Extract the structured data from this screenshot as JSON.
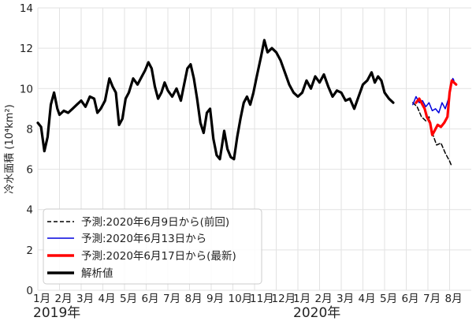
{
  "chart_data": {
    "type": "line",
    "ylabel": "冷水面積 (10⁴km²)",
    "ylim": [
      0,
      14
    ],
    "y_ticks": [
      "0",
      "2",
      "4",
      "6",
      "8",
      "10",
      "12",
      "14"
    ],
    "x_ticks": [
      "1月",
      "2月",
      "3月",
      "4月",
      "5月",
      "6月",
      "7月",
      "8月",
      "9月",
      "10月",
      "11月",
      "12月",
      "1月",
      "2月",
      "3月",
      "4月",
      "5月",
      "6月",
      "7月",
      "8月"
    ],
    "year_labels": [
      {
        "label": "2019年",
        "month": 1
      },
      {
        "label": "2020年",
        "month": 13
      }
    ],
    "grid": true,
    "legend_position": "lower-left",
    "series": [
      {
        "name": "予測:2020年6月9日から(前回)",
        "color": "#000000",
        "style": "dashed",
        "points": [
          [
            18.3,
            9.3
          ],
          [
            18.5,
            9.1
          ],
          [
            18.7,
            8.6
          ],
          [
            18.9,
            8.4
          ],
          [
            19.05,
            8.6
          ],
          [
            19.2,
            7.8
          ],
          [
            19.4,
            7.2
          ],
          [
            19.6,
            7.3
          ],
          [
            19.8,
            6.8
          ],
          [
            20.0,
            6.4
          ],
          [
            20.08,
            6.2
          ]
        ]
      },
      {
        "name": "予測:2020年6月13日から",
        "color": "#0000dd",
        "style": "solid",
        "points": [
          [
            18.3,
            9.2
          ],
          [
            18.45,
            9.6
          ],
          [
            18.6,
            9.3
          ],
          [
            18.75,
            9.4
          ],
          [
            18.9,
            9.1
          ],
          [
            19.05,
            9.3
          ],
          [
            19.2,
            8.9
          ],
          [
            19.35,
            9.0
          ],
          [
            19.5,
            8.8
          ],
          [
            19.65,
            9.3
          ],
          [
            19.8,
            9.0
          ],
          [
            19.95,
            9.5
          ],
          [
            20.05,
            10.2
          ],
          [
            20.15,
            10.5
          ],
          [
            20.2,
            10.4
          ]
        ]
      },
      {
        "name": "予測:2020年6月17日から(最新)",
        "color": "#ff0000",
        "style": "solid",
        "points": [
          [
            18.45,
            9.3
          ],
          [
            18.6,
            9.5
          ],
          [
            18.75,
            9.2
          ],
          [
            18.85,
            9.0
          ],
          [
            18.95,
            8.6
          ],
          [
            19.1,
            8.3
          ],
          [
            19.2,
            7.7
          ],
          [
            19.3,
            7.9
          ],
          [
            19.45,
            8.2
          ],
          [
            19.6,
            8.1
          ],
          [
            19.75,
            8.3
          ],
          [
            19.9,
            8.6
          ],
          [
            20.0,
            9.8
          ],
          [
            20.1,
            10.4
          ],
          [
            20.2,
            10.3
          ],
          [
            20.3,
            10.2
          ]
        ]
      },
      {
        "name": "解析値",
        "color": "#000000",
        "style": "solid-thick",
        "points": [
          [
            1.0,
            8.3
          ],
          [
            1.15,
            8.1
          ],
          [
            1.3,
            6.9
          ],
          [
            1.45,
            7.6
          ],
          [
            1.6,
            9.2
          ],
          [
            1.75,
            9.8
          ],
          [
            1.9,
            9.0
          ],
          [
            2.0,
            8.7
          ],
          [
            2.2,
            8.9
          ],
          [
            2.4,
            8.8
          ],
          [
            2.6,
            9.0
          ],
          [
            2.8,
            9.2
          ],
          [
            3.0,
            9.4
          ],
          [
            3.2,
            9.1
          ],
          [
            3.4,
            9.6
          ],
          [
            3.6,
            9.5
          ],
          [
            3.75,
            8.8
          ],
          [
            3.9,
            9.0
          ],
          [
            4.1,
            9.4
          ],
          [
            4.3,
            10.5
          ],
          [
            4.45,
            10.1
          ],
          [
            4.6,
            9.8
          ],
          [
            4.75,
            8.2
          ],
          [
            4.9,
            8.5
          ],
          [
            5.05,
            9.5
          ],
          [
            5.2,
            9.8
          ],
          [
            5.4,
            10.5
          ],
          [
            5.6,
            10.2
          ],
          [
            5.8,
            10.6
          ],
          [
            5.95,
            10.9
          ],
          [
            6.1,
            11.3
          ],
          [
            6.25,
            11.0
          ],
          [
            6.4,
            10.1
          ],
          [
            6.55,
            9.5
          ],
          [
            6.7,
            9.8
          ],
          [
            6.85,
            10.3
          ],
          [
            7.0,
            9.9
          ],
          [
            7.2,
            9.6
          ],
          [
            7.4,
            10.0
          ],
          [
            7.6,
            9.4
          ],
          [
            7.75,
            10.2
          ],
          [
            7.9,
            11.0
          ],
          [
            8.05,
            11.2
          ],
          [
            8.2,
            10.5
          ],
          [
            8.35,
            9.5
          ],
          [
            8.5,
            8.3
          ],
          [
            8.65,
            7.8
          ],
          [
            8.8,
            8.8
          ],
          [
            8.95,
            9.0
          ],
          [
            9.1,
            7.5
          ],
          [
            9.25,
            6.7
          ],
          [
            9.4,
            6.5
          ],
          [
            9.5,
            7.2
          ],
          [
            9.6,
            7.9
          ],
          [
            9.75,
            7.0
          ],
          [
            9.9,
            6.6
          ],
          [
            10.05,
            6.5
          ],
          [
            10.2,
            7.6
          ],
          [
            10.35,
            8.5
          ],
          [
            10.5,
            9.3
          ],
          [
            10.65,
            9.6
          ],
          [
            10.8,
            9.2
          ],
          [
            10.95,
            9.8
          ],
          [
            11.1,
            10.6
          ],
          [
            11.3,
            11.6
          ],
          [
            11.45,
            12.4
          ],
          [
            11.6,
            11.8
          ],
          [
            11.8,
            12.0
          ],
          [
            12.0,
            11.8
          ],
          [
            12.2,
            11.4
          ],
          [
            12.4,
            10.8
          ],
          [
            12.6,
            10.2
          ],
          [
            12.8,
            9.8
          ],
          [
            13.0,
            9.6
          ],
          [
            13.2,
            9.8
          ],
          [
            13.4,
            10.4
          ],
          [
            13.6,
            10.0
          ],
          [
            13.8,
            10.6
          ],
          [
            14.0,
            10.3
          ],
          [
            14.2,
            10.7
          ],
          [
            14.4,
            10.1
          ],
          [
            14.6,
            9.6
          ],
          [
            14.8,
            9.9
          ],
          [
            15.0,
            9.8
          ],
          [
            15.2,
            9.4
          ],
          [
            15.4,
            9.5
          ],
          [
            15.6,
            9.0
          ],
          [
            15.8,
            9.6
          ],
          [
            16.0,
            10.2
          ],
          [
            16.2,
            10.4
          ],
          [
            16.4,
            10.8
          ],
          [
            16.55,
            10.3
          ],
          [
            16.7,
            10.6
          ],
          [
            16.85,
            10.4
          ],
          [
            17.0,
            9.8
          ],
          [
            17.2,
            9.5
          ],
          [
            17.4,
            9.3
          ]
        ]
      }
    ]
  }
}
